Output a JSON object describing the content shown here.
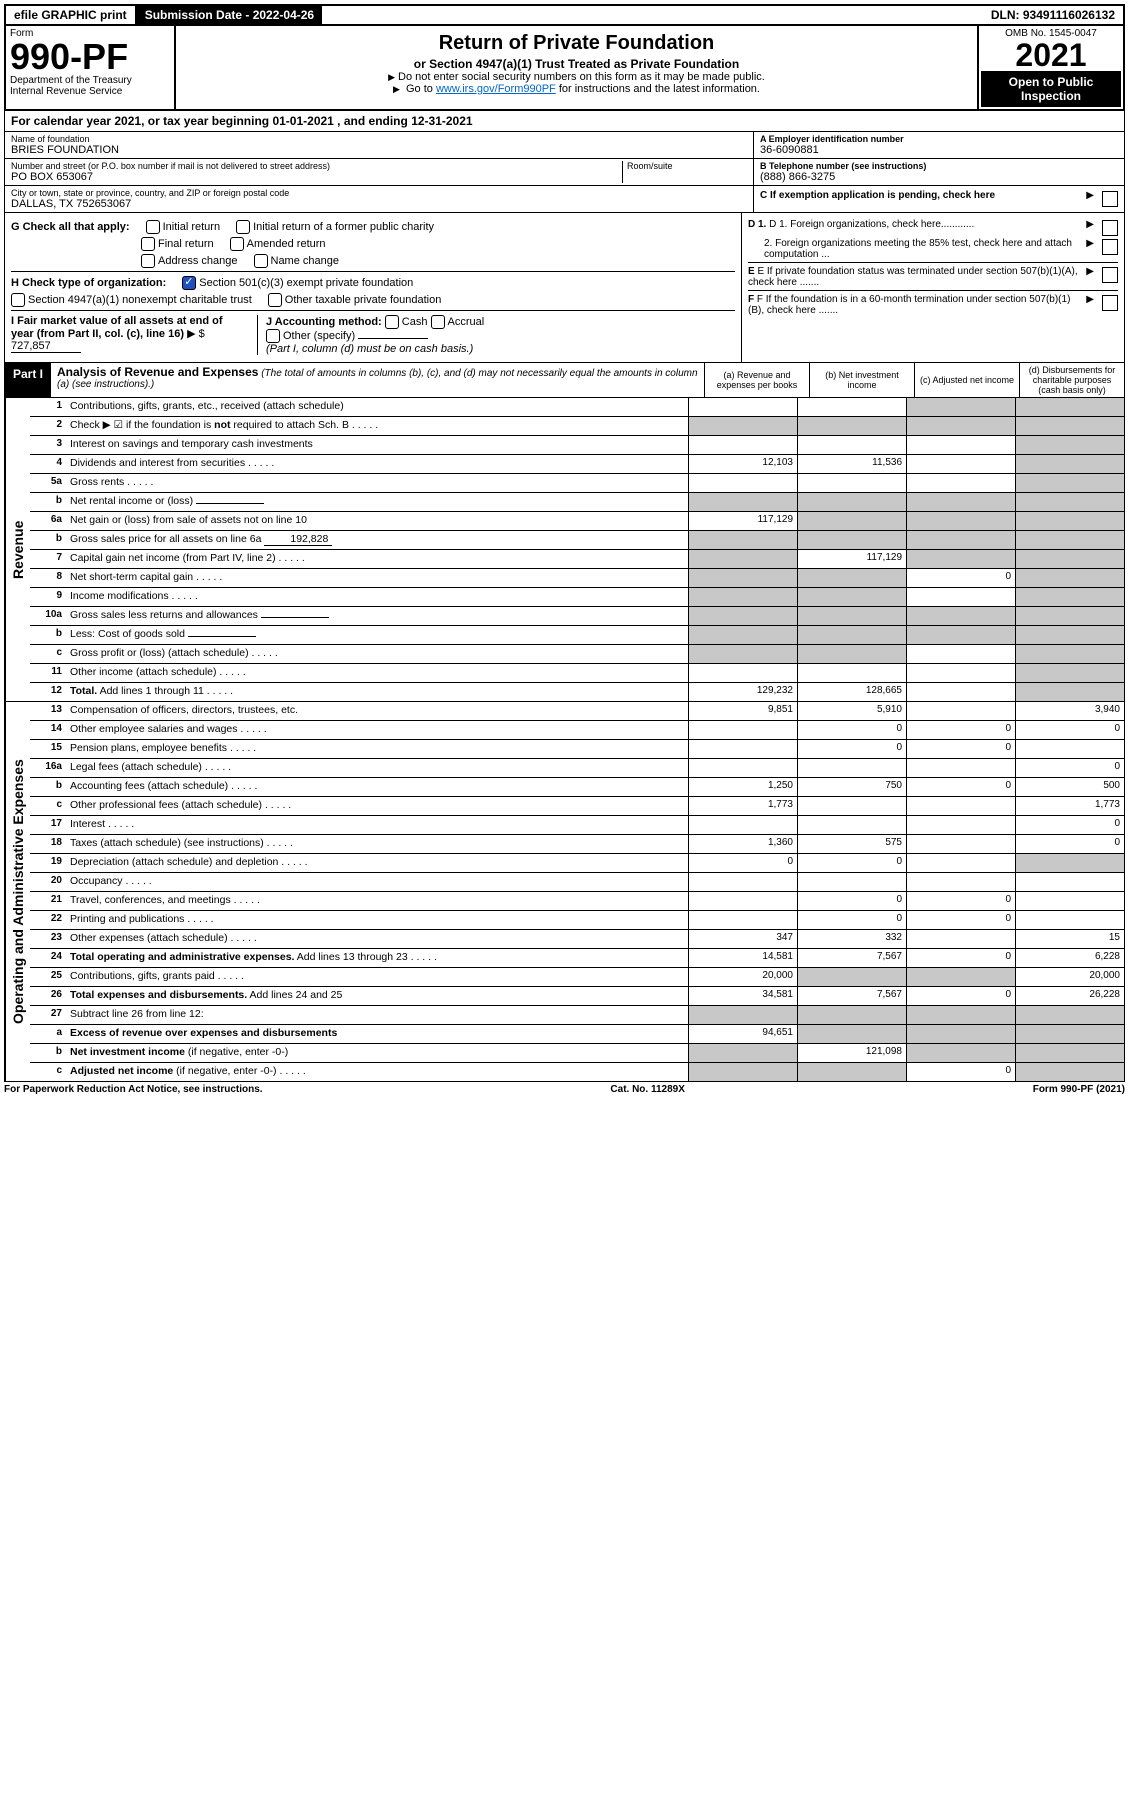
{
  "topbar": {
    "efile": "efile GRAPHIC print",
    "submission": "Submission Date - 2022-04-26",
    "dln": "DLN: 93491116026132"
  },
  "header": {
    "form_word": "Form",
    "form_no": "990-PF",
    "dept": "Department of the Treasury",
    "irs": "Internal Revenue Service",
    "title": "Return of Private Foundation",
    "subtitle": "or Section 4947(a)(1) Trust Treated as Private Foundation",
    "note1": "Do not enter social security numbers on this form as it may be made public.",
    "note2_pre": "Go to ",
    "note2_link": "www.irs.gov/Form990PF",
    "note2_post": " for instructions and the latest information.",
    "omb": "OMB No. 1545-0047",
    "year": "2021",
    "open": "Open to Public Inspection"
  },
  "calyear": {
    "text_pre": "For calendar year 2021, or tax year beginning ",
    "begin": "01-01-2021",
    "mid": " , and ending ",
    "end": "12-31-2021"
  },
  "id": {
    "name_label": "Name of foundation",
    "name": "BRIES FOUNDATION",
    "addr_label": "Number and street (or P.O. box number if mail is not delivered to street address)",
    "addr": "PO BOX 653067",
    "room_label": "Room/suite",
    "city_label": "City or town, state or province, country, and ZIP or foreign postal code",
    "city": "DALLAS, TX  752653067",
    "ein_label": "A Employer identification number",
    "ein": "36-6090881",
    "tel_label": "B Telephone number (see instructions)",
    "tel": "(888) 866-3275",
    "c_label": "C If exemption application is pending, check here"
  },
  "checks": {
    "g_label": "G Check all that apply:",
    "g_items": [
      "Initial return",
      "Initial return of a former public charity",
      "Final return",
      "Amended return",
      "Address change",
      "Name change"
    ],
    "h_label": "H Check type of organization:",
    "h1": "Section 501(c)(3) exempt private foundation",
    "h2": "Section 4947(a)(1) nonexempt charitable trust",
    "h3": "Other taxable private foundation",
    "i_label": "I Fair market value of all assets at end of year (from Part II, col. (c), line 16)",
    "i_val": "727,857",
    "j_label": "J Accounting method:",
    "j_cash": "Cash",
    "j_accrual": "Accrual",
    "j_other": "Other (specify)",
    "j_note": "(Part I, column (d) must be on cash basis.)",
    "d1": "D 1. Foreign organizations, check here............",
    "d2": "2. Foreign organizations meeting the 85% test, check here and attach computation ...",
    "e": "E  If private foundation status was terminated under section 507(b)(1)(A), check here .......",
    "f": "F  If the foundation is in a 60-month termination under section 507(b)(1)(B), check here ......."
  },
  "part1": {
    "label": "Part I",
    "title": "Analysis of Revenue and Expenses",
    "note": "(The total of amounts in columns (b), (c), and (d) may not necessarily equal the amounts in column (a) (see instructions).)",
    "col_a": "(a)  Revenue and expenses per books",
    "col_b": "(b)  Net investment income",
    "col_c": "(c)  Adjusted net income",
    "col_d": "(d)  Disbursements for charitable purposes (cash basis only)"
  },
  "sections": {
    "revenue": "Revenue",
    "opex": "Operating and Administrative Expenses"
  },
  "rows": [
    {
      "n": "1",
      "d": "Contributions, gifts, grants, etc., received (attach schedule)",
      "a": "",
      "b": "",
      "c": "g",
      "dcol": "g"
    },
    {
      "n": "2",
      "d": "Check ▶ ☑ if the foundation is <b>not</b> required to attach Sch. B",
      "a": "g",
      "b": "g",
      "c": "g",
      "dcol": "g",
      "dots": true
    },
    {
      "n": "3",
      "d": "Interest on savings and temporary cash investments",
      "a": "",
      "b": "",
      "c": "",
      "dcol": "g"
    },
    {
      "n": "4",
      "d": "Dividends and interest from securities",
      "a": "12,103",
      "b": "11,536",
      "c": "",
      "dcol": "g",
      "dots": true
    },
    {
      "n": "5a",
      "d": "Gross rents",
      "a": "",
      "b": "",
      "c": "",
      "dcol": "g",
      "dots": true
    },
    {
      "n": "b",
      "d": "Net rental income or (loss)",
      "a": "g",
      "b": "g",
      "c": "g",
      "dcol": "g",
      "inline": ""
    },
    {
      "n": "6a",
      "d": "Net gain or (loss) from sale of assets not on line 10",
      "a": "117,129",
      "b": "g",
      "c": "g",
      "dcol": "g"
    },
    {
      "n": "b",
      "d": "Gross sales price for all assets on line 6a",
      "a": "g",
      "b": "g",
      "c": "g",
      "dcol": "g",
      "inline": "192,828"
    },
    {
      "n": "7",
      "d": "Capital gain net income (from Part IV, line 2)",
      "a": "g",
      "b": "117,129",
      "c": "g",
      "dcol": "g",
      "dots": true
    },
    {
      "n": "8",
      "d": "Net short-term capital gain",
      "a": "g",
      "b": "g",
      "c": "0",
      "dcol": "g",
      "dots": true
    },
    {
      "n": "9",
      "d": "Income modifications",
      "a": "g",
      "b": "g",
      "c": "",
      "dcol": "g",
      "dots": true
    },
    {
      "n": "10a",
      "d": "Gross sales less returns and allowances",
      "a": "g",
      "b": "g",
      "c": "g",
      "dcol": "g",
      "inline": ""
    },
    {
      "n": "b",
      "d": "Less: Cost of goods sold",
      "a": "g",
      "b": "g",
      "c": "g",
      "dcol": "g",
      "dots": true,
      "inline": ""
    },
    {
      "n": "c",
      "d": "Gross profit or (loss) (attach schedule)",
      "a": "g",
      "b": "g",
      "c": "",
      "dcol": "g",
      "dots": true
    },
    {
      "n": "11",
      "d": "Other income (attach schedule)",
      "a": "",
      "b": "",
      "c": "",
      "dcol": "g",
      "dots": true
    },
    {
      "n": "12",
      "d": "<b>Total.</b> Add lines 1 through 11",
      "a": "129,232",
      "b": "128,665",
      "c": "",
      "dcol": "g",
      "dots": true,
      "bold": true
    }
  ],
  "oprows": [
    {
      "n": "13",
      "d": "Compensation of officers, directors, trustees, etc.",
      "a": "9,851",
      "b": "5,910",
      "c": "",
      "dcol": "3,940"
    },
    {
      "n": "14",
      "d": "Other employee salaries and wages",
      "a": "",
      "b": "0",
      "c": "0",
      "dcol": "0",
      "dots": true
    },
    {
      "n": "15",
      "d": "Pension plans, employee benefits",
      "a": "",
      "b": "0",
      "c": "0",
      "dcol": "",
      "dots": true
    },
    {
      "n": "16a",
      "d": "Legal fees (attach schedule)",
      "a": "",
      "b": "",
      "c": "",
      "dcol": "0",
      "dots": true
    },
    {
      "n": "b",
      "d": "Accounting fees (attach schedule)",
      "a": "1,250",
      "b": "750",
      "c": "0",
      "dcol": "500",
      "dots": true
    },
    {
      "n": "c",
      "d": "Other professional fees (attach schedule)",
      "a": "1,773",
      "b": "",
      "c": "",
      "dcol": "1,773",
      "dots": true
    },
    {
      "n": "17",
      "d": "Interest",
      "a": "",
      "b": "",
      "c": "",
      "dcol": "0",
      "dots": true
    },
    {
      "n": "18",
      "d": "Taxes (attach schedule) (see instructions)",
      "a": "1,360",
      "b": "575",
      "c": "",
      "dcol": "0",
      "dots": true
    },
    {
      "n": "19",
      "d": "Depreciation (attach schedule) and depletion",
      "a": "0",
      "b": "0",
      "c": "",
      "dcol": "g",
      "dots": true
    },
    {
      "n": "20",
      "d": "Occupancy",
      "a": "",
      "b": "",
      "c": "",
      "dcol": "",
      "dots": true
    },
    {
      "n": "21",
      "d": "Travel, conferences, and meetings",
      "a": "",
      "b": "0",
      "c": "0",
      "dcol": "",
      "dots": true
    },
    {
      "n": "22",
      "d": "Printing and publications",
      "a": "",
      "b": "0",
      "c": "0",
      "dcol": "",
      "dots": true
    },
    {
      "n": "23",
      "d": "Other expenses (attach schedule)",
      "a": "347",
      "b": "332",
      "c": "",
      "dcol": "15",
      "dots": true
    },
    {
      "n": "24",
      "d": "<b>Total operating and administrative expenses.</b> Add lines 13 through 23",
      "a": "14,581",
      "b": "7,567",
      "c": "0",
      "dcol": "6,228",
      "dots": true
    },
    {
      "n": "25",
      "d": "Contributions, gifts, grants paid",
      "a": "20,000",
      "b": "g",
      "c": "g",
      "dcol": "20,000",
      "dots": true
    },
    {
      "n": "26",
      "d": "<b>Total expenses and disbursements.</b> Add lines 24 and 25",
      "a": "34,581",
      "b": "7,567",
      "c": "0",
      "dcol": "26,228"
    },
    {
      "n": "27",
      "d": "Subtract line 26 from line 12:",
      "a": "g",
      "b": "g",
      "c": "g",
      "dcol": "g"
    },
    {
      "n": "a",
      "d": "<b>Excess of revenue over expenses and disbursements</b>",
      "a": "94,651",
      "b": "g",
      "c": "g",
      "dcol": "g"
    },
    {
      "n": "b",
      "d": "<b>Net investment income</b> (if negative, enter -0-)",
      "a": "g",
      "b": "121,098",
      "c": "g",
      "dcol": "g"
    },
    {
      "n": "c",
      "d": "<b>Adjusted net income</b> (if negative, enter -0-)",
      "a": "g",
      "b": "g",
      "c": "0",
      "dcol": "g",
      "dots": true
    }
  ],
  "footer": {
    "left": "For Paperwork Reduction Act Notice, see instructions.",
    "mid": "Cat. No. 11289X",
    "right": "Form 990-PF (2021)"
  }
}
